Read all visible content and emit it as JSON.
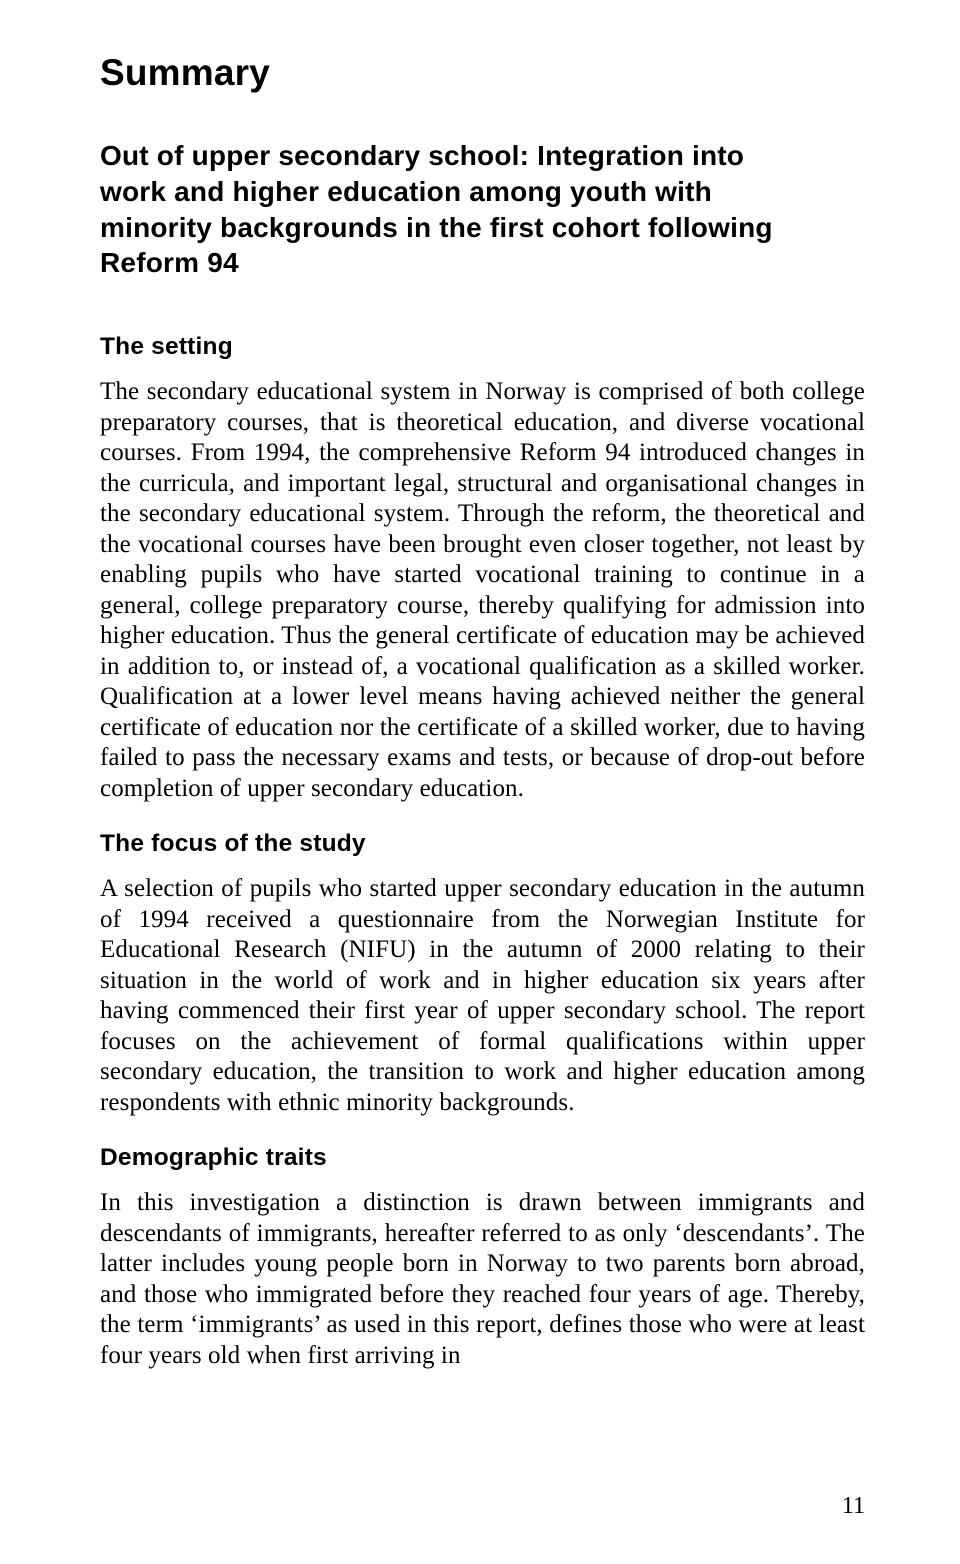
{
  "page": {
    "title": "Summary",
    "subtitle": "Out of upper secondary school: Integration into work and higher education among youth with minority backgrounds in the first cohort following Reform 94",
    "page_number": "11",
    "background_color": "#ffffff",
    "text_color": "#000000",
    "heading_font": "Arial",
    "body_font": "Garamond",
    "title_fontsize": 37,
    "subtitle_fontsize": 28,
    "section_heading_fontsize": 24.5,
    "body_fontsize": 25,
    "sections": [
      {
        "heading": "The setting",
        "paragraph": "The secondary educational system in Norway is comprised of both college preparatory courses, that is theoretical education, and diverse vocational courses. From 1994, the comprehensive Reform 94 introduced changes in the curricula, and important legal, structural and organisational changes in the secondary educational system. Through the reform, the theoretical and the vocational courses have been brought even closer together, not least by enabling pupils who have started vocational training to continue in a general, college preparatory course, thereby qualifying for admission into higher education. Thus the general certificate of education may be achieved in addition to, or instead of, a vocational qualification as a skilled worker. Qualification at a lower level means having achieved neither the general certificate of education nor the certificate of a skilled worker, due to having failed to pass the necessary exams and tests, or because of drop-out before completion of upper secondary education."
      },
      {
        "heading": "The focus of the study",
        "paragraph": "A selection of pupils who started upper secondary education in the autumn of 1994 received a questionnaire from the Norwegian Institute for Educational Research (NIFU) in the autumn of 2000 relating to their situation in the world of work and in higher education six years after having commenced their first year of upper secondary school. The report focuses on the achievement of formal qualifications within upper secondary education, the transition to work and higher education among respondents with ethnic minority backgrounds."
      },
      {
        "heading": "Demographic traits",
        "paragraph": "In this investigation a distinction is drawn between immigrants and descendants of immigrants, hereafter referred to as only ‘descendants’. The latter includes young people born in Norway to two parents born abroad, and those who immigrated before they reached four years of age. Thereby, the term ‘immigrants’ as used in this report, defines those who were at least four years old when first arriving in"
      }
    ]
  }
}
